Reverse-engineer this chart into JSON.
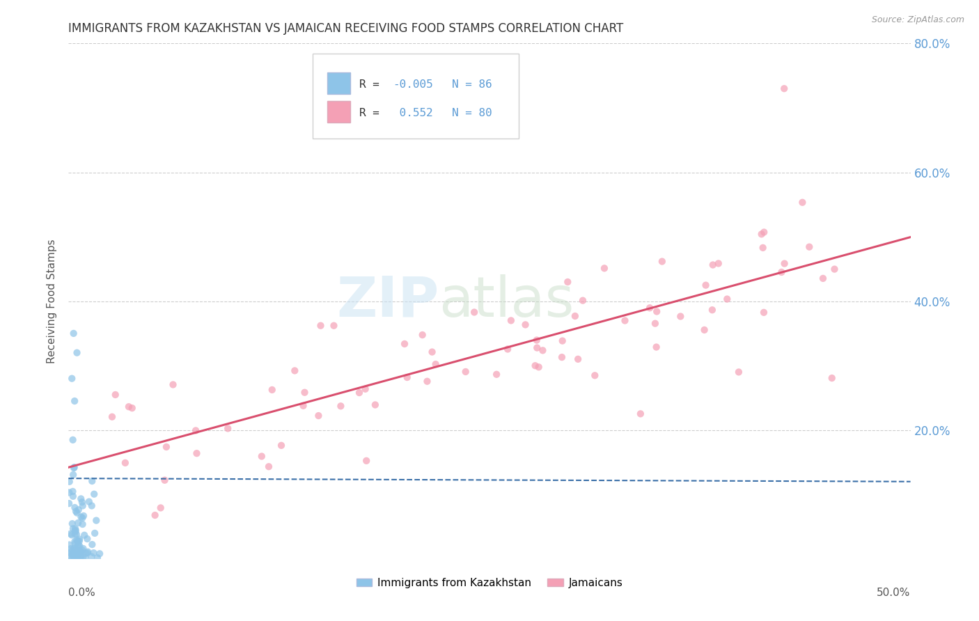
{
  "title": "IMMIGRANTS FROM KAZAKHSTAN VS JAMAICAN RECEIVING FOOD STAMPS CORRELATION CHART",
  "source": "Source: ZipAtlas.com",
  "ylabel": "Receiving Food Stamps",
  "legend_label1": "Immigrants from Kazakhstan",
  "legend_label2": "Jamaicans",
  "r1": -0.005,
  "n1": 86,
  "r2": 0.552,
  "n2": 80,
  "color_kaz": "#8ec4e8",
  "color_jam": "#f4a0b5",
  "color_line1": "#3a6fa8",
  "color_line2": "#d94f6e",
  "color_title": "#333333",
  "background": "#ffffff",
  "grid_color": "#c8c8c8",
  "right_tick_color": "#5b9bd5",
  "xlim": [
    0,
    0.5
  ],
  "ylim": [
    0,
    0.8
  ],
  "y_ticks": [
    0.2,
    0.4,
    0.6,
    0.8
  ],
  "y_tick_labels": [
    "20.0%",
    "40.0%",
    "60.0%",
    "80.0%"
  ],
  "x_tick_labels_show": [
    "0.0%",
    "50.0%"
  ],
  "legend_r1_val": "-0.005",
  "legend_r2_val": "0.552",
  "legend_n1_val": "86",
  "legend_n2_val": "80"
}
